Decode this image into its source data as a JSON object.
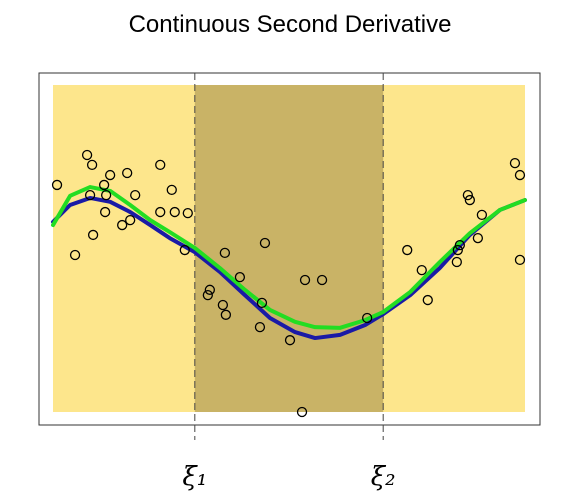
{
  "chart_data": {
    "type": "scatter",
    "title": "Continuous Second Derivative",
    "xlim": [
      0,
      1
    ],
    "ylim": [
      0,
      1
    ],
    "xticks": [
      {
        "value": 0.311,
        "label": "ξ₁"
      },
      {
        "value": 0.687,
        "label": "ξ₂"
      }
    ],
    "series": [
      {
        "type": "scatter",
        "color": "#000000",
        "x": [
          0.036,
          0.072,
          0.096,
          0.106,
          0.108,
          0.102,
          0.13,
          0.134,
          0.142,
          0.132,
          0.166,
          0.176,
          0.182,
          0.192,
          0.242,
          0.242,
          0.265,
          0.271,
          0.297,
          0.291,
          0.341,
          0.337,
          0.371,
          0.367,
          0.373,
          0.401,
          0.441,
          0.445,
          0.451,
          0.501,
          0.531,
          0.525,
          0.565,
          0.655,
          0.735,
          0.764,
          0.776,
          0.836,
          0.834,
          0.84,
          0.856,
          0.86,
          0.876,
          0.884,
          0.95,
          0.96,
          0.96
        ],
        "values": [
          0.682,
          0.483,
          0.767,
          0.739,
          0.54,
          0.653,
          0.682,
          0.653,
          0.71,
          0.605,
          0.568,
          0.716,
          0.582,
          0.653,
          0.739,
          0.605,
          0.668,
          0.605,
          0.602,
          0.497,
          0.384,
          0.369,
          0.489,
          0.341,
          0.313,
          0.42,
          0.278,
          0.347,
          0.517,
          0.241,
          0.412,
          0.037,
          0.412,
          0.304,
          0.497,
          0.44,
          0.355,
          0.497,
          0.463,
          0.511,
          0.653,
          0.639,
          0.531,
          0.597,
          0.744,
          0.71,
          0.469
        ]
      },
      {
        "type": "line",
        "color": "#1a1aa6",
        "x": [
          0.028,
          0.062,
          0.102,
          0.142,
          0.182,
          0.222,
          0.261,
          0.311,
          0.361,
          0.411,
          0.461,
          0.511,
          0.551,
          0.601,
          0.651,
          0.687,
          0.741,
          0.8,
          0.86,
          0.92,
          0.97
        ],
        "values": [
          0.577,
          0.625,
          0.645,
          0.634,
          0.605,
          0.568,
          0.531,
          0.491,
          0.435,
          0.369,
          0.304,
          0.264,
          0.247,
          0.256,
          0.284,
          0.315,
          0.369,
          0.446,
          0.54,
          0.611,
          0.639
        ]
      },
      {
        "type": "line",
        "color": "#22dd22",
        "x": [
          0.028,
          0.062,
          0.102,
          0.142,
          0.182,
          0.222,
          0.261,
          0.311,
          0.361,
          0.411,
          0.461,
          0.511,
          0.551,
          0.601,
          0.651,
          0.687,
          0.741,
          0.8,
          0.86,
          0.92,
          0.97
        ],
        "values": [
          0.568,
          0.651,
          0.676,
          0.665,
          0.625,
          0.582,
          0.548,
          0.503,
          0.446,
          0.384,
          0.327,
          0.293,
          0.278,
          0.276,
          0.298,
          0.321,
          0.378,
          0.463,
          0.545,
          0.611,
          0.639
        ]
      }
    ]
  }
}
